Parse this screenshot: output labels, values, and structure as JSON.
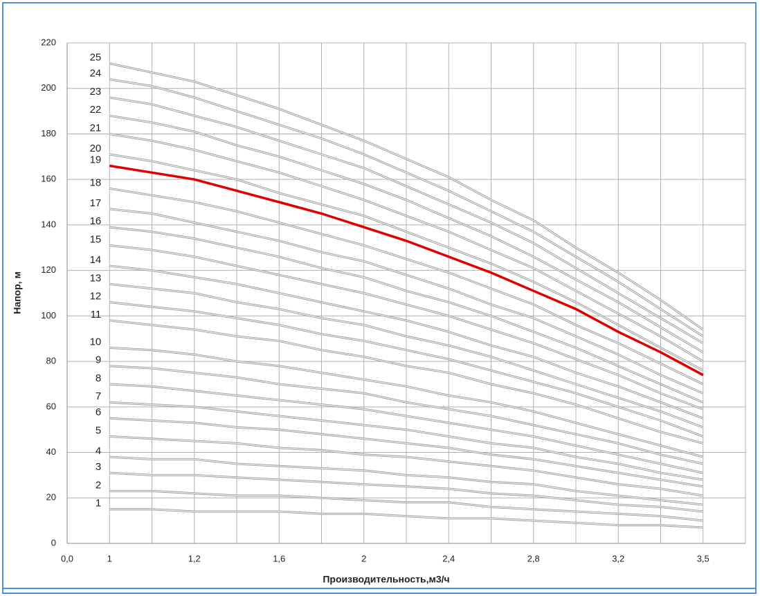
{
  "chart_data": {
    "type": "line",
    "xlabel": "Производительность,м3/ч",
    "ylabel": "Напор, м",
    "categories": [
      "0,0",
      "1",
      null,
      "1,2",
      null,
      "1,6",
      null,
      "2",
      null,
      "2,4",
      null,
      "2,8",
      null,
      "3,2",
      null,
      "3,5"
    ],
    "ylim": [
      0,
      220
    ],
    "yticks": [
      0,
      20,
      40,
      60,
      80,
      100,
      120,
      140,
      160,
      180,
      200,
      220
    ],
    "grid": true,
    "series": [
      {
        "name": "1",
        "color": "#9a9a9a",
        "values": [
          null,
          15,
          15,
          14,
          14,
          14,
          13,
          13,
          12,
          11,
          11,
          10,
          9,
          8,
          8,
          7
        ]
      },
      {
        "name": "2",
        "color": "#9a9a9a",
        "values": [
          null,
          23,
          23,
          22,
          21,
          21,
          20,
          19,
          18,
          18,
          16,
          15,
          14,
          13,
          12,
          10
        ]
      },
      {
        "name": "3",
        "color": "#9a9a9a",
        "values": [
          null,
          31,
          30,
          30,
          29,
          28,
          27,
          26,
          25,
          24,
          22,
          21,
          19,
          17,
          16,
          14
        ]
      },
      {
        "name": "4",
        "color": "#9a9a9a",
        "values": [
          null,
          38,
          37,
          37,
          35,
          34,
          33,
          32,
          30,
          29,
          27,
          26,
          23,
          21,
          19,
          17
        ]
      },
      {
        "name": "5",
        "color": "#9a9a9a",
        "values": [
          null,
          47,
          46,
          45,
          44,
          42,
          41,
          39,
          38,
          36,
          34,
          32,
          29,
          26,
          24,
          21
        ]
      },
      {
        "name": "6",
        "color": "#9a9a9a",
        "values": [
          null,
          55,
          54,
          53,
          51,
          50,
          48,
          46,
          44,
          42,
          39,
          37,
          34,
          31,
          28,
          25
        ]
      },
      {
        "name": "7",
        "color": "#9a9a9a",
        "values": [
          null,
          62,
          61,
          60,
          58,
          56,
          54,
          52,
          50,
          47,
          44,
          42,
          38,
          35,
          31,
          28
        ]
      },
      {
        "name": "8",
        "color": "#9a9a9a",
        "values": [
          null,
          70,
          69,
          67,
          65,
          63,
          61,
          59,
          56,
          53,
          50,
          47,
          43,
          39,
          35,
          31
        ]
      },
      {
        "name": "9",
        "color": "#9a9a9a",
        "values": [
          null,
          78,
          77,
          75,
          73,
          70,
          68,
          66,
          62,
          59,
          56,
          52,
          48,
          44,
          39,
          35
        ]
      },
      {
        "name": "10",
        "color": "#9a9a9a",
        "values": [
          null,
          86,
          85,
          83,
          80,
          78,
          75,
          72,
          69,
          65,
          62,
          58,
          53,
          48,
          43,
          38
        ]
      },
      {
        "name": "11",
        "color": "#9a9a9a",
        "values": [
          null,
          98,
          96,
          94,
          91,
          89,
          85,
          82,
          78,
          75,
          70,
          66,
          61,
          55,
          49,
          44
        ]
      },
      {
        "name": "12",
        "color": "#9a9a9a",
        "values": [
          null,
          106,
          104,
          102,
          99,
          96,
          92,
          89,
          85,
          81,
          76,
          71,
          66,
          60,
          54,
          47
        ]
      },
      {
        "name": "13",
        "color": "#9a9a9a",
        "values": [
          null,
          114,
          112,
          110,
          106,
          103,
          99,
          96,
          91,
          87,
          82,
          76,
          70,
          64,
          58,
          51
        ]
      },
      {
        "name": "14",
        "color": "#9a9a9a",
        "values": [
          null,
          122,
          120,
          117,
          114,
          110,
          106,
          102,
          98,
          93,
          87,
          82,
          75,
          69,
          62,
          55
        ]
      },
      {
        "name": "15",
        "color": "#9a9a9a",
        "values": [
          null,
          131,
          129,
          126,
          122,
          118,
          114,
          110,
          105,
          100,
          94,
          88,
          81,
          74,
          66,
          59
        ]
      },
      {
        "name": "16",
        "color": "#9a9a9a",
        "values": [
          null,
          139,
          137,
          134,
          130,
          126,
          121,
          117,
          111,
          106,
          100,
          93,
          86,
          78,
          70,
          62
        ]
      },
      {
        "name": "17",
        "color": "#9a9a9a",
        "values": [
          null,
          147,
          145,
          141,
          137,
          133,
          128,
          124,
          118,
          112,
          105,
          99,
          91,
          83,
          74,
          66
        ]
      },
      {
        "name": "18",
        "color": "#9a9a9a",
        "values": [
          null,
          156,
          153,
          150,
          146,
          141,
          136,
          131,
          125,
          119,
          112,
          105,
          96,
          88,
          79,
          70
        ]
      },
      {
        "name": "19",
        "color": "#e00000",
        "values": [
          null,
          166,
          163,
          160,
          155,
          150,
          145,
          139,
          133,
          126,
          119,
          111,
          103,
          93,
          84,
          74
        ]
      },
      {
        "name": "20",
        "color": "#9a9a9a",
        "values": [
          null,
          171,
          168,
          164,
          160,
          154,
          149,
          144,
          137,
          130,
          123,
          115,
          106,
          96,
          86,
          76
        ]
      },
      {
        "name": "21",
        "color": "#9a9a9a",
        "values": [
          null,
          180,
          177,
          173,
          168,
          163,
          157,
          151,
          144,
          137,
          129,
          121,
          111,
          101,
          91,
          80
        ]
      },
      {
        "name": "22",
        "color": "#9a9a9a",
        "values": [
          null,
          188,
          185,
          181,
          175,
          170,
          164,
          158,
          151,
          143,
          135,
          126,
          116,
          106,
          95,
          84
        ]
      },
      {
        "name": "23",
        "color": "#9a9a9a",
        "values": [
          null,
          196,
          193,
          188,
          183,
          177,
          171,
          165,
          157,
          149,
          141,
          132,
          121,
          110,
          99,
          88
        ]
      },
      {
        "name": "24",
        "color": "#9a9a9a",
        "values": [
          null,
          204,
          201,
          196,
          190,
          184,
          178,
          171,
          163,
          155,
          146,
          137,
          126,
          115,
          103,
          91
        ]
      },
      {
        "name": "25",
        "color": "#9a9a9a",
        "values": [
          null,
          211,
          207,
          203,
          197,
          191,
          184,
          177,
          169,
          161,
          151,
          142,
          130,
          119,
          107,
          94
        ]
      }
    ]
  }
}
